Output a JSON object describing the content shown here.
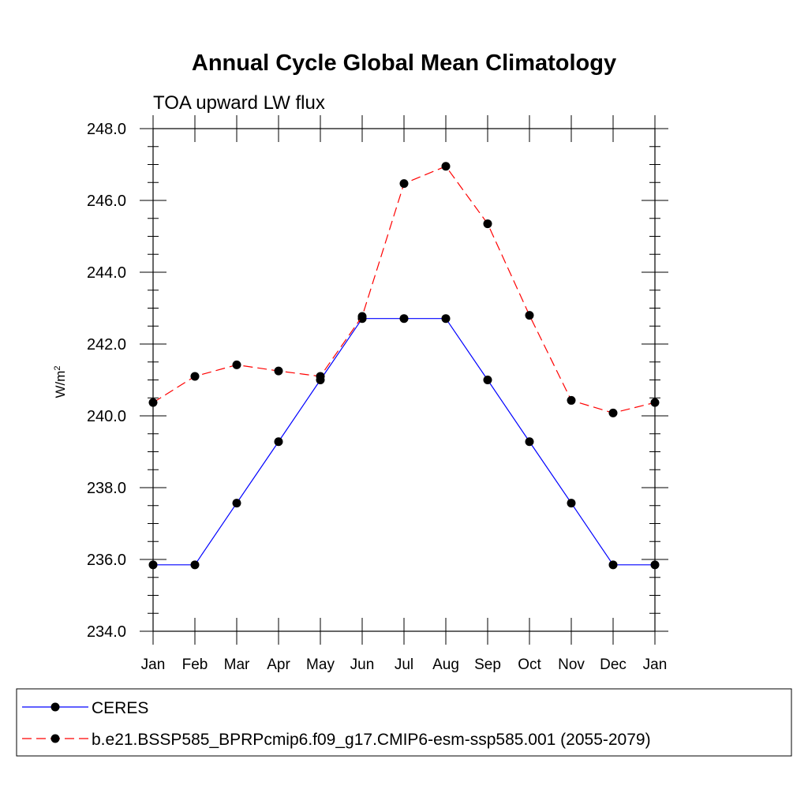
{
  "chart_data": {
    "type": "line",
    "title": "Annual Cycle Global Mean Climatology",
    "subtitle": "TOA upward LW flux",
    "xlabel": "",
    "ylabel": "W/m",
    "ylabel_superscript": "2",
    "categories": [
      "Jan",
      "Feb",
      "Mar",
      "Apr",
      "May",
      "Jun",
      "Jul",
      "Aug",
      "Sep",
      "Oct",
      "Nov",
      "Dec",
      "Jan"
    ],
    "ylim": [
      234.0,
      248.0
    ],
    "yticks": [
      "234.0",
      "236.0",
      "238.0",
      "240.0",
      "242.0",
      "244.0",
      "246.0",
      "248.0"
    ],
    "grid": false,
    "legend_position": "bottom",
    "series": [
      {
        "name": "CERES",
        "color": "#0000ff",
        "style": "solid",
        "marker": "circle",
        "values": [
          235.85,
          235.85,
          237.57,
          239.28,
          241.0,
          242.71,
          242.71,
          242.71,
          241.0,
          239.28,
          237.57,
          235.85,
          235.85
        ]
      },
      {
        "name": "b.e21.BSSP585_BPRPcmip6.f09_g17.CMIP6-esm-ssp585.001 (2055-2079)",
        "color": "#ff0000",
        "style": "dashed",
        "marker": "circle",
        "values": [
          240.37,
          241.1,
          241.42,
          241.25,
          241.1,
          242.77,
          246.47,
          246.95,
          245.35,
          242.8,
          240.43,
          240.08,
          240.37
        ]
      }
    ]
  }
}
